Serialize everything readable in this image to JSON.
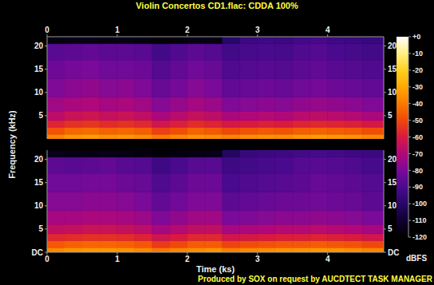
{
  "chart_data": {
    "type": "spectrogram",
    "title": "Violin Concertos CD1.flac: CDDA 100%",
    "xlabel": "Time (ks)",
    "ylabel": "Frequency (kHz)",
    "footer": "Produced by SOX on request by AUCDTECT TASK MANAGER",
    "xlim": [
      0,
      4.8
    ],
    "xticks": [
      0,
      1,
      2,
      3,
      4
    ],
    "ylim": [
      0,
      22
    ],
    "x_edges": [
      0,
      0.25,
      0.5,
      0.75,
      1,
      1.25,
      1.5,
      1.75,
      2,
      2.25,
      2.5,
      2.75,
      3,
      3.25,
      3.5,
      3.75,
      4,
      4.25,
      4.5,
      4.8
    ],
    "y_edges": [
      0,
      1,
      2.5,
      4,
      6,
      9,
      13,
      17,
      20.5,
      22
    ],
    "panels": [
      {
        "yticks": [
          5,
          10,
          15,
          20
        ],
        "cells": [
          [
            -38,
            -48,
            -58,
            -67,
            -73,
            -79,
            -83,
            -87,
            -116
          ],
          [
            -34,
            -44,
            -55,
            -64,
            -71,
            -77,
            -81,
            -86,
            -115
          ],
          [
            -33,
            -43,
            -54,
            -63,
            -70,
            -76,
            -80,
            -85,
            -115
          ],
          [
            -35,
            -45,
            -56,
            -65,
            -72,
            -78,
            -82,
            -86,
            -116
          ],
          [
            -34,
            -44,
            -55,
            -64,
            -71,
            -77,
            -82,
            -86,
            -115
          ],
          [
            -36,
            -46,
            -57,
            -66,
            -73,
            -79,
            -83,
            -87,
            -116
          ],
          [
            -40,
            -52,
            -62,
            -71,
            -78,
            -84,
            -88,
            -92,
            -118
          ],
          [
            -37,
            -49,
            -59,
            -68,
            -75,
            -81,
            -85,
            -89,
            -117
          ],
          [
            -35,
            -45,
            -56,
            -65,
            -72,
            -78,
            -82,
            -86,
            -115
          ],
          [
            -36,
            -47,
            -58,
            -67,
            -74,
            -80,
            -84,
            -88,
            -116
          ],
          [
            -38,
            -50,
            -61,
            -71,
            -79,
            -85,
            -89,
            -92,
            -100
          ],
          [
            -36,
            -48,
            -60,
            -70,
            -78,
            -84,
            -88,
            -91,
            -94
          ],
          [
            -35,
            -47,
            -59,
            -69,
            -77,
            -83,
            -87,
            -90,
            -93
          ],
          [
            -36,
            -48,
            -60,
            -70,
            -78,
            -84,
            -88,
            -91,
            -94
          ],
          [
            -34,
            -46,
            -58,
            -68,
            -76,
            -82,
            -86,
            -89,
            -92
          ],
          [
            -33,
            -45,
            -57,
            -67,
            -75,
            -81,
            -85,
            -88,
            -91
          ],
          [
            -34,
            -46,
            -58,
            -68,
            -76,
            -83,
            -87,
            -90,
            -93
          ],
          [
            -35,
            -47,
            -59,
            -69,
            -77,
            -84,
            -88,
            -91,
            -94
          ],
          [
            -37,
            -49,
            -61,
            -71,
            -79,
            -85,
            -89,
            -92,
            -95
          ]
        ]
      },
      {
        "yticks": [
          {
            "value": 0,
            "label": "DC"
          },
          5,
          10,
          15,
          20
        ],
        "cells": [
          [
            -37,
            -47,
            -57,
            -66,
            -72,
            -78,
            -82,
            -86,
            -115
          ],
          [
            -35,
            -45,
            -56,
            -65,
            -72,
            -78,
            -82,
            -87,
            -116
          ],
          [
            -34,
            -44,
            -55,
            -64,
            -71,
            -77,
            -81,
            -86,
            -116
          ],
          [
            -34,
            -44,
            -55,
            -64,
            -71,
            -77,
            -81,
            -85,
            -115
          ],
          [
            -35,
            -45,
            -56,
            -65,
            -72,
            -78,
            -83,
            -87,
            -116
          ],
          [
            -37,
            -47,
            -58,
            -67,
            -74,
            -80,
            -84,
            -88,
            -117
          ],
          [
            -41,
            -53,
            -63,
            -72,
            -79,
            -85,
            -89,
            -93,
            -118
          ],
          [
            -38,
            -50,
            -60,
            -69,
            -76,
            -82,
            -86,
            -90,
            -117
          ],
          [
            -36,
            -46,
            -57,
            -66,
            -73,
            -79,
            -83,
            -87,
            -116
          ],
          [
            -35,
            -46,
            -57,
            -66,
            -73,
            -79,
            -83,
            -87,
            -115
          ],
          [
            -39,
            -51,
            -62,
            -72,
            -80,
            -86,
            -90,
            -93,
            -101
          ],
          [
            -37,
            -49,
            -61,
            -71,
            -79,
            -85,
            -89,
            -92,
            -95
          ],
          [
            -36,
            -48,
            -60,
            -70,
            -78,
            -84,
            -88,
            -91,
            -94
          ],
          [
            -35,
            -47,
            -59,
            -69,
            -77,
            -83,
            -87,
            -90,
            -93
          ],
          [
            -35,
            -47,
            -59,
            -69,
            -77,
            -83,
            -86,
            -88,
            -92
          ],
          [
            -34,
            -46,
            -58,
            -68,
            -76,
            -82,
            -84,
            -87,
            -91
          ],
          [
            -35,
            -47,
            -59,
            -69,
            -77,
            -83,
            -85,
            -88,
            -92
          ],
          [
            -36,
            -48,
            -60,
            -70,
            -78,
            -84,
            -86,
            -89,
            -93
          ],
          [
            -38,
            -50,
            -62,
            -72,
            -80,
            -86,
            -88,
            -91,
            -94
          ]
        ]
      }
    ],
    "colorbar": {
      "range": [
        -120,
        0
      ],
      "ticks": [
        {
          "value": 0,
          "label": "+0"
        },
        -10,
        -20,
        -30,
        -40,
        -50,
        -60,
        -70,
        -80,
        -90,
        -100,
        -110,
        -120
      ],
      "label": "dBFS"
    }
  }
}
